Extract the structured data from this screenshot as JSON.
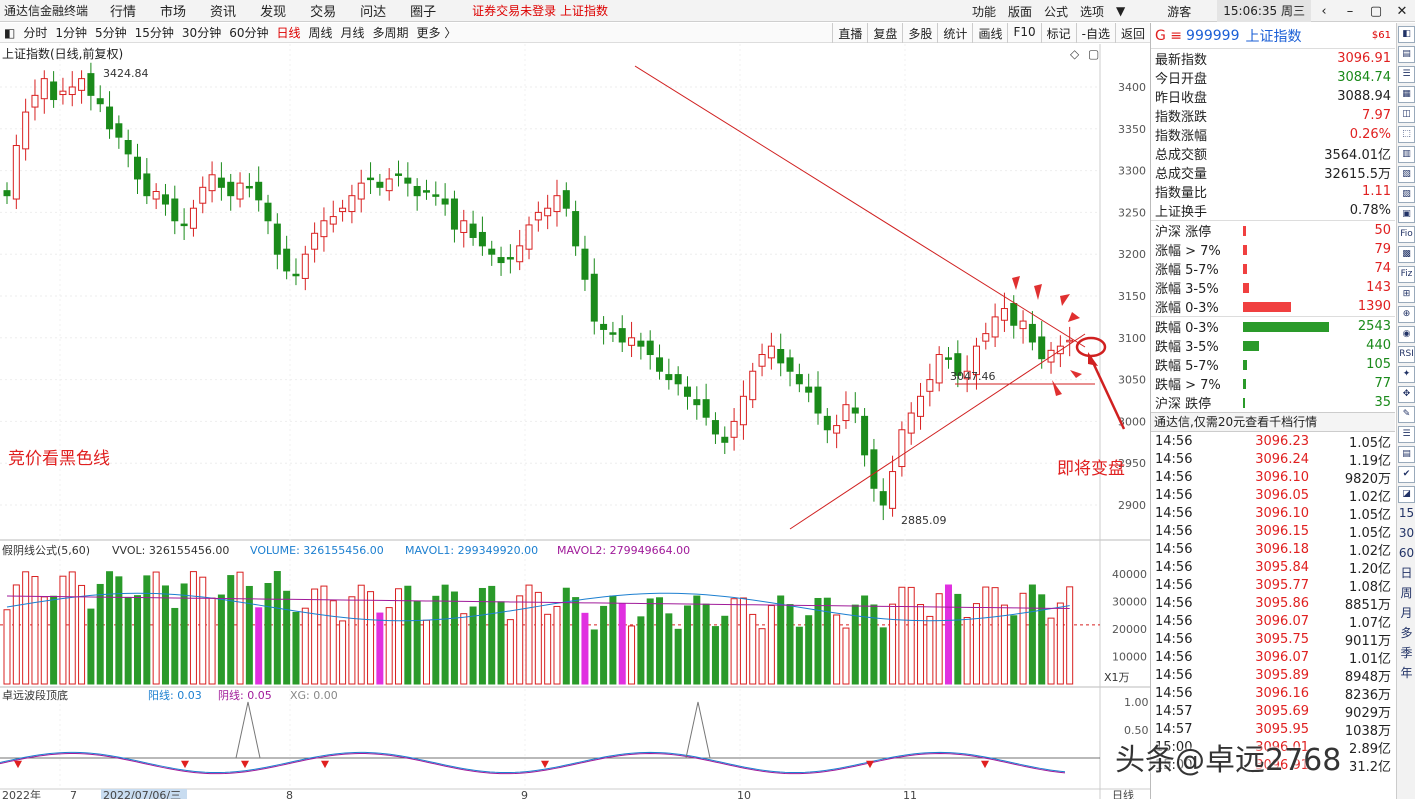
{
  "menubar": {
    "app_title": "通达信金融终端",
    "items": [
      "行情",
      "市场",
      "资讯",
      "发现",
      "交易",
      "问达",
      "圈子"
    ],
    "warning": "证券交易未登录  上证指数",
    "right_items": [
      "功能",
      "版面",
      "公式",
      "选项"
    ],
    "user": "游客",
    "clock": "15:06:35 周三"
  },
  "toolbar": {
    "periods": [
      "分时",
      "1分钟",
      "5分钟",
      "15分钟",
      "30分钟",
      "60分钟",
      "日线",
      "周线",
      "月线",
      "多周期",
      "更多 〉"
    ],
    "active_period": "日线",
    "right_buttons": [
      "直播",
      "复盘",
      "多股",
      "统计",
      "画线",
      "F10",
      "标记",
      "-自选",
      "返回"
    ]
  },
  "chart": {
    "title": "上证指数(日线,前复权)",
    "high_label": "3424.84",
    "low_label": "2885.09",
    "level_label": "3047.46",
    "annotation_left": "竞价看黑色线",
    "annotation_right": "即将变盘",
    "y_ticks": [
      "3400",
      "3350",
      "3300",
      "3250",
      "3200",
      "3150",
      "3100",
      "3050",
      "3000",
      "2950",
      "2900"
    ],
    "x_ticks": [
      "2022年",
      "7",
      "2022/07/06/三",
      "8",
      "9",
      "10",
      "11"
    ],
    "x_right_label": "日线"
  },
  "volume_panel": {
    "header_name": "假阴线公式(5,60)",
    "vvol": "VVOL: 326155456.00",
    "volume": "VOLUME: 326155456.00",
    "mavol1": "MAVOL1: 299349920.00",
    "mavol2": "MAVOL2: 279949664.00",
    "y_ticks": [
      "40000",
      "30000",
      "20000",
      "10000"
    ],
    "unit": "X1万"
  },
  "osc_panel": {
    "header_name": "卓远波段顶底",
    "yang": "阳线: 0.03",
    "yin": "阴线: 0.05",
    "xg": "XG: 0.00",
    "y_ticks": [
      "1.00",
      "0.50"
    ]
  },
  "quote": {
    "prefix": "G ≡",
    "code": "999999",
    "name": "上证指数",
    "tag": "$61",
    "rows": [
      {
        "label": "最新指数",
        "value": "3096.91",
        "color": "#e02020"
      },
      {
        "label": "今日开盘",
        "value": "3084.74",
        "color": "#1a8a1a"
      },
      {
        "label": "昨日收盘",
        "value": "3088.94",
        "color": "#222222"
      },
      {
        "label": "指数涨跌",
        "value": "7.97",
        "color": "#e02020"
      },
      {
        "label": "指数涨幅",
        "value": "0.26%",
        "color": "#e02020"
      },
      {
        "label": "总成交额",
        "value": "3564.01亿",
        "color": "#222222"
      },
      {
        "label": "总成交量",
        "value": "32615.5万",
        "color": "#222222"
      },
      {
        "label": "指数量比",
        "value": "1.11",
        "color": "#e02020"
      },
      {
        "label": "上证换手",
        "value": "0.78%",
        "color": "#222222"
      }
    ]
  },
  "breadth": {
    "up_rows": [
      {
        "label": "沪深 涨停",
        "value": "50",
        "bar": 3
      },
      {
        "label": "涨幅 > 7%",
        "value": "79",
        "bar": 4
      },
      {
        "label": "涨幅 5-7%",
        "value": "74",
        "bar": 4
      },
      {
        "label": "涨幅 3-5%",
        "value": "143",
        "bar": 6
      },
      {
        "label": "涨幅 0-3%",
        "value": "1390",
        "bar": 48
      }
    ],
    "down_rows": [
      {
        "label": "跌幅 0-3%",
        "value": "2543",
        "bar": 86
      },
      {
        "label": "跌幅 3-5%",
        "value": "440",
        "bar": 16
      },
      {
        "label": "跌幅 5-7%",
        "value": "105",
        "bar": 4
      },
      {
        "label": "跌幅 > 7%",
        "value": "77",
        "bar": 3
      },
      {
        "label": "沪深 跌停",
        "value": "35",
        "bar": 2
      }
    ],
    "up_color": "#f04040",
    "down_color": "#2a9a2a"
  },
  "ticks": {
    "title": "通达信,仅需20元查看千档行情",
    "rows": [
      {
        "t": "14:56",
        "p": "3096.23",
        "v": "1.05亿"
      },
      {
        "t": "14:56",
        "p": "3096.24",
        "v": "1.19亿"
      },
      {
        "t": "14:56",
        "p": "3096.10",
        "v": "9820万"
      },
      {
        "t": "14:56",
        "p": "3096.05",
        "v": "1.02亿"
      },
      {
        "t": "14:56",
        "p": "3096.10",
        "v": "1.05亿"
      },
      {
        "t": "14:56",
        "p": "3096.15",
        "v": "1.05亿"
      },
      {
        "t": "14:56",
        "p": "3096.18",
        "v": "1.02亿"
      },
      {
        "t": "14:56",
        "p": "3095.84",
        "v": "1.20亿"
      },
      {
        "t": "14:56",
        "p": "3095.77",
        "v": "1.08亿"
      },
      {
        "t": "14:56",
        "p": "3095.86",
        "v": "8851万"
      },
      {
        "t": "14:56",
        "p": "3096.07",
        "v": "1.07亿"
      },
      {
        "t": "14:56",
        "p": "3095.75",
        "v": "9011万"
      },
      {
        "t": "14:56",
        "p": "3096.07",
        "v": "1.01亿"
      },
      {
        "t": "14:56",
        "p": "3095.89",
        "v": "8948万"
      },
      {
        "t": "14:56",
        "p": "3096.16",
        "v": "8236万"
      },
      {
        "t": "14:57",
        "p": "3095.69",
        "v": "9029万"
      },
      {
        "t": "14:57",
        "p": "3095.95",
        "v": "1038万"
      },
      {
        "t": "15:00",
        "p": "3096.01",
        "v": "2.89亿"
      },
      {
        "t": "15:00",
        "p": "3096.91",
        "v": "31.2亿"
      }
    ]
  },
  "iconbar": [
    "◧",
    "▤",
    "☰",
    "▦",
    "◫",
    "⬚",
    "▥",
    "▧",
    "▨",
    "▣",
    "Fio",
    "▩",
    "Fiz",
    "⊞",
    "⊕",
    "◉",
    "RSI",
    "✦",
    "✥",
    "✎",
    "☰",
    "▤",
    "✔",
    "◪",
    "15",
    "30",
    "60",
    "日",
    "周",
    "月",
    "多",
    "季",
    "年"
  ],
  "watermark": "头条@卓远2768"
}
